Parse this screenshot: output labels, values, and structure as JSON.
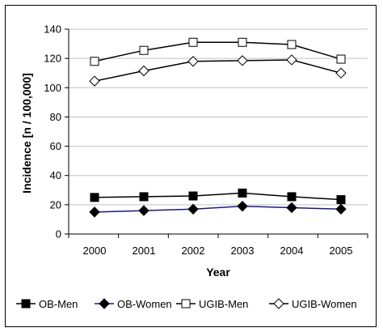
{
  "chart_data": {
    "type": "line",
    "title": "",
    "xlabel": "Year",
    "ylabel": "Incidence [n / 100,000]",
    "categories": [
      "2000",
      "2001",
      "2002",
      "2003",
      "2004",
      "2005"
    ],
    "ylim": [
      0,
      140
    ],
    "yticks": [
      0,
      20,
      40,
      60,
      80,
      100,
      120,
      140
    ],
    "grid": "horizontal",
    "legend_position": "bottom",
    "series": [
      {
        "name": "OB-Men",
        "values": [
          25,
          25.5,
          26,
          28,
          25.5,
          23.5
        ],
        "color": "#000000",
        "marker": "filled-square"
      },
      {
        "name": "OB-Women",
        "values": [
          15,
          16,
          17,
          19,
          18,
          17
        ],
        "color": "#1a1a80",
        "marker": "filled-diamond"
      },
      {
        "name": "UGIB-Men",
        "values": [
          118,
          125.5,
          131,
          131,
          129.5,
          119.5
        ],
        "color": "#000000",
        "marker": "open-square"
      },
      {
        "name": "UGIB-Women",
        "values": [
          104.5,
          111.5,
          118,
          118.5,
          119,
          110
        ],
        "color": "#000000",
        "marker": "open-diamond"
      }
    ]
  }
}
